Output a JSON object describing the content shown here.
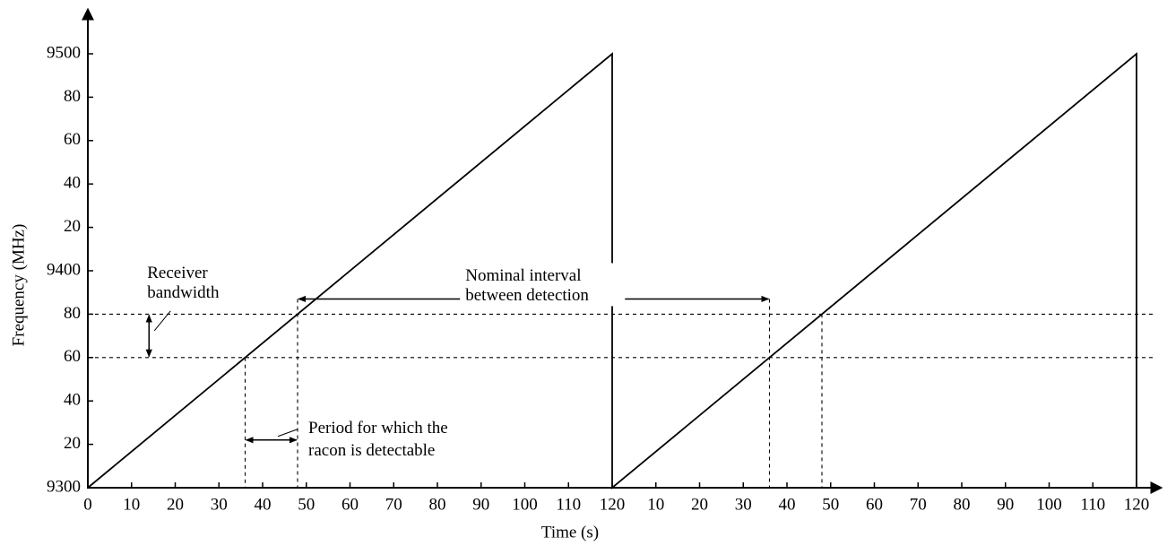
{
  "chart_data": {
    "type": "line",
    "xlabel": "Time (s)",
    "ylabel": "Frequency (MHz)",
    "xlim": [
      0,
      240
    ],
    "ylim": [
      9300,
      9500
    ],
    "xticks": [
      0,
      10,
      20,
      30,
      40,
      50,
      60,
      70,
      80,
      90,
      100,
      110,
      120,
      {
        "value": 130,
        "label": "10"
      },
      {
        "value": 140,
        "label": "20"
      },
      {
        "value": 150,
        "label": "30"
      },
      {
        "value": 160,
        "label": "40"
      },
      {
        "value": 170,
        "label": "50"
      },
      {
        "value": 180,
        "label": "60"
      },
      {
        "value": 190,
        "label": "70"
      },
      {
        "value": 200,
        "label": "80"
      },
      {
        "value": 210,
        "label": "90"
      },
      {
        "value": 220,
        "label": "100"
      },
      {
        "value": 230,
        "label": "110"
      },
      {
        "value": 240,
        "label": "120"
      }
    ],
    "yticks": [
      9300,
      {
        "value": 9320,
        "label": "20"
      },
      {
        "value": 9340,
        "label": "40"
      },
      {
        "value": 9360,
        "label": "60"
      },
      {
        "value": 9380,
        "label": "80"
      },
      9400,
      {
        "value": 9420,
        "label": "20"
      },
      {
        "value": 9440,
        "label": "40"
      },
      {
        "value": 9460,
        "label": "60"
      },
      {
        "value": 9480,
        "label": "80"
      },
      9500
    ],
    "grid": false,
    "series": [
      {
        "color": "#000000",
        "x": [
          0,
          120,
          120,
          240,
          240
        ],
        "values": [
          9300,
          9500,
          9300,
          9500,
          9300
        ]
      }
    ],
    "hlines": [
      9360,
      9380
    ],
    "vlines": [
      [
        36,
        9360
      ],
      [
        48,
        9387
      ],
      [
        156,
        9387
      ],
      [
        168,
        9380
      ]
    ],
    "annotations": [
      {
        "text": [
          "Receiver",
          "bandwidth"
        ],
        "x": 14,
        "span_y": [
          9360,
          9380
        ]
      },
      {
        "text": [
          "Nominal interval",
          "between detection"
        ],
        "y": 9387,
        "span_x": [
          48,
          156
        ]
      },
      {
        "text": [
          "Period for which the",
          "racon is detectable"
        ],
        "y": 9322,
        "span_x": [
          36,
          48
        ]
      }
    ]
  }
}
